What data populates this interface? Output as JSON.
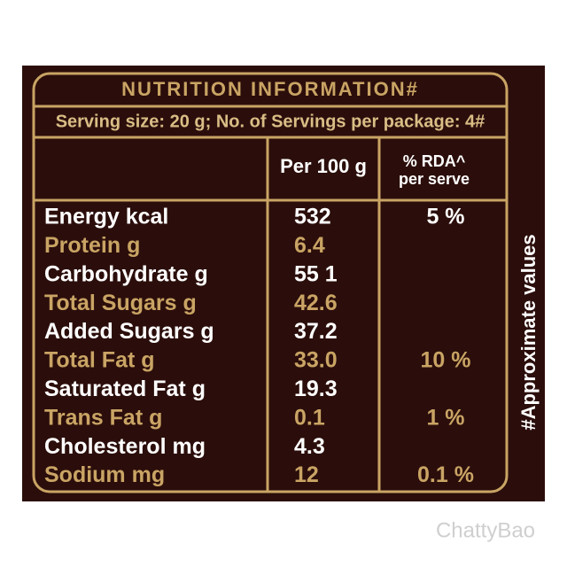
{
  "header": {
    "title": "NUTRITION INFORMATION#",
    "serving": "Serving size: 20 g; No. of Servings per package: 4#"
  },
  "table": {
    "columns": [
      "Per 100 g",
      "% RDA^",
      "per serve"
    ],
    "rows": [
      {
        "name": "Energy kcal",
        "per_100g": "532",
        "rda": "5 %"
      },
      {
        "name": "Protein g",
        "per_100g": "6.4"
      },
      {
        "name": "Carbohydrate g",
        "per_100g": "55 1"
      },
      {
        "name": "Total Sugars g",
        "per_100g": "42.6"
      },
      {
        "name": "Added Sugars g",
        "per_100g": "37.2"
      },
      {
        "name": "Total Fat g",
        "per_100g": "33.0",
        "rda": "10 %"
      },
      {
        "name": "Saturated Fat g",
        "per_100g": "19.3"
      },
      {
        "name": "Trans Fat g",
        "per_100g": "0.1",
        "rda": "1 %"
      },
      {
        "name": "Cholesterol mg",
        "per_100g": "4.3"
      },
      {
        "name": "Sodium mg",
        "per_100g": "12",
        "rda": "0.1 %"
      }
    ]
  },
  "side_note": "#Approximate values",
  "watermark": "ChattyBao"
}
